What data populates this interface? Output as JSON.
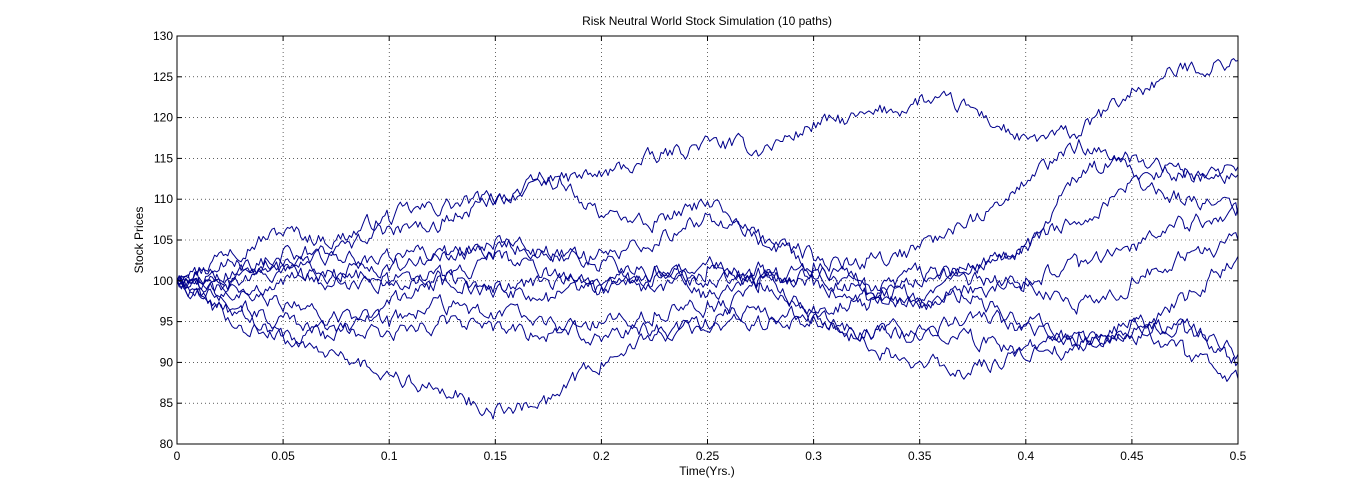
{
  "chart_data": {
    "type": "line",
    "title": "Risk Neutral World Stock Simulation (10 paths)",
    "xlabel": "Time(Yrs.)",
    "ylabel": "Stock Prices",
    "xlim": [
      0,
      0.5
    ],
    "ylim": [
      80,
      130
    ],
    "xticks": [
      0,
      0.05,
      0.1,
      0.15,
      0.2,
      0.25,
      0.3,
      0.35,
      0.4,
      0.45,
      0.5
    ],
    "xtick_labels": [
      "0",
      "0.05",
      "0.1",
      "0.15",
      "0.2",
      "0.25",
      "0.3",
      "0.35",
      "0.4",
      "0.45",
      "0.5"
    ],
    "yticks": [
      80,
      85,
      90,
      95,
      100,
      105,
      110,
      115,
      120,
      125,
      130
    ],
    "ytick_labels": [
      "80",
      "85",
      "90",
      "95",
      "100",
      "105",
      "110",
      "115",
      "120",
      "125",
      "130"
    ],
    "grid": true,
    "legend": "none",
    "line_color": "#00008b",
    "x": [
      0,
      0.025,
      0.05,
      0.075,
      0.1,
      0.125,
      0.15,
      0.175,
      0.2,
      0.225,
      0.25,
      0.275,
      0.3,
      0.325,
      0.35,
      0.375,
      0.4,
      0.425,
      0.45,
      0.475,
      0.5
    ],
    "series": [
      {
        "values": [
          100,
          104,
          106,
          105,
          108,
          109,
          110,
          112,
          113,
          115,
          117,
          116,
          119,
          120,
          122,
          121,
          117,
          118,
          123,
          126,
          127
        ]
      },
      {
        "values": [
          100,
          101,
          103,
          104,
          106,
          107,
          110,
          113,
          108,
          107,
          110,
          105,
          103,
          102,
          104,
          108,
          112,
          117,
          113,
          113,
          114
        ]
      },
      {
        "values": [
          100,
          102,
          101,
          100,
          99,
          100,
          99,
          98,
          99,
          100,
          102,
          100,
          101,
          99,
          97,
          102,
          104,
          108,
          112,
          110,
          109
        ]
      },
      {
        "values": [
          100,
          95,
          93,
          93,
          97,
          100,
          103,
          101,
          99,
          101,
          100,
          101,
          100,
          97,
          101,
          100,
          100,
          102,
          104,
          107,
          108
        ]
      },
      {
        "values": [
          100,
          100,
          102,
          101,
          103,
          103,
          105,
          103,
          103,
          105,
          108,
          105,
          102,
          99,
          97,
          99,
          100,
          97,
          100,
          103,
          105
        ]
      },
      {
        "values": [
          100,
          99,
          100,
          101,
          100,
          101,
          99,
          100,
          100,
          99,
          101,
          100,
          101,
          100,
          98,
          98,
          95,
          93,
          93,
          98,
          103
        ]
      },
      {
        "values": [
          100,
          98,
          97,
          96,
          95,
          97,
          96,
          95,
          93,
          94,
          94,
          95,
          96,
          98,
          100,
          101,
          104,
          113,
          115,
          113,
          113
        ]
      },
      {
        "values": [
          100,
          97,
          95,
          94,
          93,
          95,
          94,
          93,
          95,
          96,
          97,
          96,
          95,
          94,
          94,
          93,
          91,
          92,
          95,
          94,
          91
        ]
      },
      {
        "values": [
          100,
          96,
          93,
          91,
          88,
          87,
          84,
          85,
          90,
          93,
          95,
          99,
          97,
          92,
          90,
          89,
          92,
          93,
          93,
          95,
          90
        ]
      },
      {
        "values": [
          100,
          100,
          102,
          103,
          101,
          103,
          104,
          104,
          102,
          101,
          98,
          102,
          95,
          94,
          93,
          96,
          94,
          92,
          95,
          91,
          88
        ]
      }
    ]
  }
}
